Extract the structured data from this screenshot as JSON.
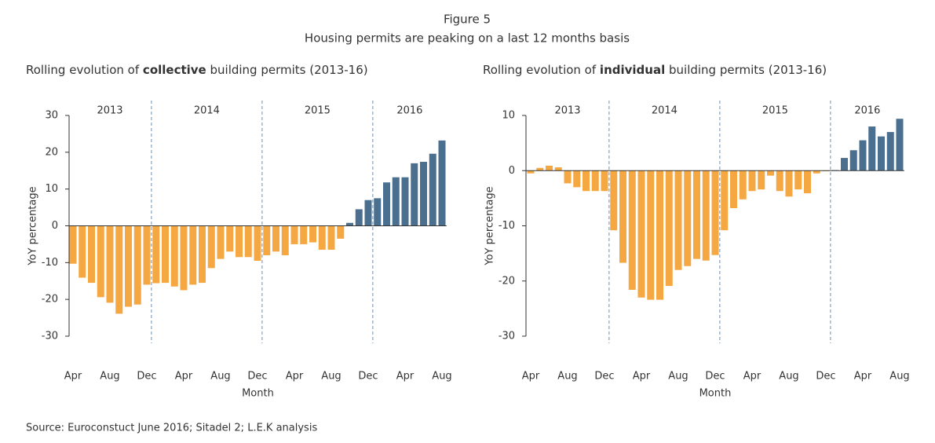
{
  "figure": {
    "title": "Figure 5",
    "subtitle": "Housing permits are peaking on a last 12 months basis",
    "source": "Source: Euroconstuct June 2016; Sitadel 2; L.E.K analysis"
  },
  "chart_data": [
    {
      "type": "bar",
      "title": {
        "before": "Rolling evolution of ",
        "bold": "collective",
        "after": " building permits (2013-16)"
      },
      "ylabel": "YoY percentage",
      "xlabel": "Month",
      "categories": [
        "Apr",
        null,
        null,
        null,
        "Aug",
        null,
        null,
        null,
        "Dec",
        null,
        null,
        null,
        "Apr",
        null,
        null,
        null,
        "Aug",
        null,
        null,
        null,
        "Dec",
        null,
        null,
        null,
        "Apr",
        null,
        null,
        null,
        "Aug",
        null,
        null,
        null,
        "Dec",
        null,
        null,
        null,
        "Apr",
        null,
        null,
        null,
        "Aug"
      ],
      "years": [
        "2013",
        "2013",
        "2013",
        "2013",
        "2013",
        "2013",
        "2013",
        "2013",
        "2013",
        "2014",
        "2014",
        "2014",
        "2014",
        "2014",
        "2014",
        "2014",
        "2014",
        "2014",
        "2014",
        "2014",
        "2014",
        "2015",
        "2015",
        "2015",
        "2015",
        "2015",
        "2015",
        "2015",
        "2015",
        "2015",
        "2015",
        "2015",
        "2015",
        "2016",
        "2016",
        "2016",
        "2016",
        "2016",
        "2016",
        "2016",
        "2016"
      ],
      "values": [
        -10.3,
        -14.1,
        -15.5,
        -19.4,
        -20.9,
        -23.9,
        -22,
        -21.4,
        -16,
        -15.6,
        -15.5,
        -16.5,
        -17.5,
        -16,
        -15.5,
        -11.5,
        -9,
        -7,
        -8.5,
        -8.5,
        -9.5,
        -8,
        -7,
        -8,
        -5,
        -5,
        -4.5,
        -6.5,
        -6.5,
        -3.5,
        0.8,
        4.5,
        7,
        7.5,
        11.8,
        13.2,
        13.2,
        17,
        17.4,
        19.6,
        23.2
      ],
      "colors": [
        "#f5a742",
        "#f5a742",
        "#f5a742",
        "#f5a742",
        "#f5a742",
        "#f5a742",
        "#f5a742",
        "#f5a742",
        "#f5a742",
        "#f5a742",
        "#f5a742",
        "#f5a742",
        "#f5a742",
        "#f5a742",
        "#f5a742",
        "#f5a742",
        "#f5a742",
        "#f5a742",
        "#f5a742",
        "#f5a742",
        "#f5a742",
        "#f5a742",
        "#f5a742",
        "#f5a742",
        "#f5a742",
        "#f5a742",
        "#f5a742",
        "#f5a742",
        "#f5a742",
        "#f5a742",
        "#4a6f8f",
        "#4a6f8f",
        "#4a6f8f",
        "#4a6f8f",
        "#4a6f8f",
        "#4a6f8f",
        "#4a6f8f",
        "#4a6f8f",
        "#4a6f8f",
        "#4a6f8f",
        "#4a6f8f"
      ],
      "ylim": [
        -30,
        30
      ],
      "yticks": [
        -30,
        -20,
        -10,
        0,
        10,
        20,
        30
      ]
    },
    {
      "type": "bar",
      "title": {
        "before": "Rolling evolution of ",
        "bold": "individual",
        "after": " building permits (2013-16)"
      },
      "ylabel": "YoY percentage",
      "xlabel": "Month",
      "categories": [
        "Apr",
        null,
        null,
        null,
        "Aug",
        null,
        null,
        null,
        "Dec",
        null,
        null,
        null,
        "Apr",
        null,
        null,
        null,
        "Aug",
        null,
        null,
        null,
        "Dec",
        null,
        null,
        null,
        "Apr",
        null,
        null,
        null,
        "Aug",
        null,
        null,
        null,
        "Dec",
        null,
        null,
        null,
        "Apr",
        null,
        null,
        null,
        "Aug"
      ],
      "years": [
        "2013",
        "2013",
        "2013",
        "2013",
        "2013",
        "2013",
        "2013",
        "2013",
        "2013",
        "2014",
        "2014",
        "2014",
        "2014",
        "2014",
        "2014",
        "2014",
        "2014",
        "2014",
        "2014",
        "2014",
        "2014",
        "2015",
        "2015",
        "2015",
        "2015",
        "2015",
        "2015",
        "2015",
        "2015",
        "2015",
        "2015",
        "2015",
        "2015",
        "2016",
        "2016",
        "2016",
        "2016",
        "2016",
        "2016",
        "2016",
        "2016"
      ],
      "values": [
        -0.5,
        0.5,
        0.9,
        0.6,
        -2.3,
        -3,
        -3.7,
        -3.7,
        -3.7,
        -10.8,
        -16.7,
        -21.6,
        -23,
        -23.4,
        -23.4,
        -20.9,
        -18,
        -17.3,
        -16,
        -16.3,
        -15.3,
        -10.8,
        -6.8,
        -5.2,
        -3.7,
        -3.4,
        -0.9,
        -3.7,
        -4.7,
        -3.4,
        -4.1,
        -0.5,
        -0.1,
        0.1,
        2.3,
        3.7,
        5.5,
        8,
        6.2,
        7,
        9.4
      ],
      "colors": [
        "#f5a742",
        "#f5a742",
        "#f5a742",
        "#f5a742",
        "#f5a742",
        "#f5a742",
        "#f5a742",
        "#f5a742",
        "#f5a742",
        "#f5a742",
        "#f5a742",
        "#f5a742",
        "#f5a742",
        "#f5a742",
        "#f5a742",
        "#f5a742",
        "#f5a742",
        "#f5a742",
        "#f5a742",
        "#f5a742",
        "#f5a742",
        "#f5a742",
        "#f5a742",
        "#f5a742",
        "#f5a742",
        "#f5a742",
        "#f5a742",
        "#f5a742",
        "#f5a742",
        "#f5a742",
        "#f5a742",
        "#f5a742",
        "#f5a742",
        "#4a6f8f",
        "#4a6f8f",
        "#4a6f8f",
        "#4a6f8f",
        "#4a6f8f",
        "#4a6f8f",
        "#4a6f8f",
        "#4a6f8f"
      ],
      "ylim": [
        -30,
        10
      ],
      "yticks": [
        -30,
        -20,
        -10,
        0,
        10
      ]
    }
  ]
}
